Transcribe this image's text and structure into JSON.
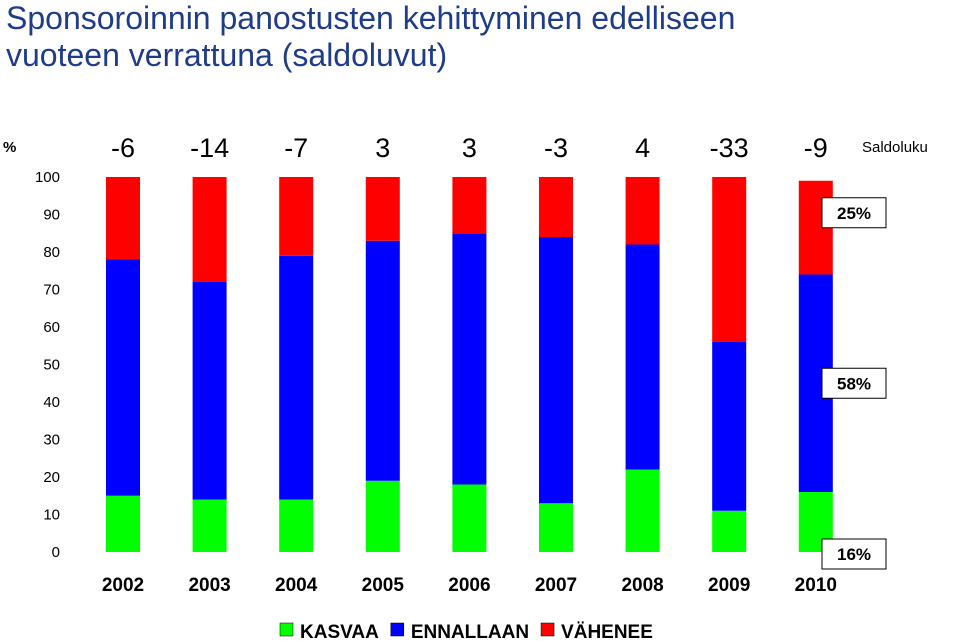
{
  "title_line1": "Sponsoroinnin panostusten kehittyminen edelliseen",
  "title_line2": "vuoteen verrattuna (saldoluvut)",
  "chart_data": {
    "type": "bar",
    "stacked": true,
    "ylabel": "%",
    "ylim": [
      0,
      100
    ],
    "yticks": [
      0,
      10,
      20,
      30,
      40,
      50,
      60,
      70,
      80,
      90,
      100
    ],
    "categories": [
      "2002",
      "2003",
      "2004",
      "2005",
      "2006",
      "2007",
      "2008",
      "2009",
      "2010"
    ],
    "series": [
      {
        "name": "KASVAA",
        "color": "#00ff00",
        "values": [
          15,
          14,
          14,
          19,
          18,
          13,
          22,
          11,
          16
        ]
      },
      {
        "name": "ENNALLAAN",
        "color": "#0000ff",
        "values": [
          63,
          58,
          65,
          64,
          67,
          71,
          60,
          45,
          58
        ]
      },
      {
        "name": "VÄHENEE",
        "color": "#ff0000",
        "values": [
          22,
          28,
          21,
          17,
          15,
          16,
          18,
          44,
          25
        ]
      }
    ],
    "saldo_label": "Saldoluku",
    "saldo_values": [
      "-6",
      "-14",
      "-7",
      "3",
      "3",
      "-3",
      "4",
      "-33",
      "-9"
    ],
    "callouts": [
      {
        "series": "VÄHENEE",
        "category": "2010",
        "text": "25%"
      },
      {
        "series": "ENNALLAAN",
        "category": "2010",
        "text": "58%"
      },
      {
        "series": "KASVAA",
        "category": "2010",
        "text": "16%"
      }
    ],
    "legend_position": "bottom",
    "grid": false
  }
}
